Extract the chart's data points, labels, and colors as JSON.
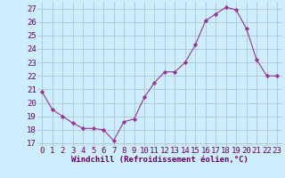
{
  "x": [
    0,
    1,
    2,
    3,
    4,
    5,
    6,
    7,
    8,
    9,
    10,
    11,
    12,
    13,
    14,
    15,
    16,
    17,
    18,
    19,
    20,
    21,
    22,
    23
  ],
  "y": [
    20.8,
    19.5,
    19.0,
    18.5,
    18.1,
    18.1,
    18.0,
    17.2,
    18.6,
    18.8,
    20.4,
    21.5,
    22.3,
    22.3,
    23.0,
    24.3,
    26.1,
    26.6,
    27.1,
    26.9,
    25.5,
    23.2,
    22.0,
    22.0
  ],
  "line_color": "#993399",
  "marker": "D",
  "marker_size": 2.2,
  "bg_color": "#cceeff",
  "grid_color": "#aabbcc",
  "xlabel": "Windchill (Refroidissement éolien,°C)",
  "xlabel_color": "#660066",
  "xlabel_fontsize": 6.5,
  "tick_color": "#660066",
  "tick_fontsize": 6.5,
  "yticks": [
    17,
    18,
    19,
    20,
    21,
    22,
    23,
    24,
    25,
    26,
    27
  ],
  "xticks": [
    0,
    1,
    2,
    3,
    4,
    5,
    6,
    7,
    8,
    9,
    10,
    11,
    12,
    13,
    14,
    15,
    16,
    17,
    18,
    19,
    20,
    21,
    22,
    23
  ],
  "ylim": [
    16.8,
    27.5
  ],
  "xlim": [
    -0.5,
    23.5
  ]
}
